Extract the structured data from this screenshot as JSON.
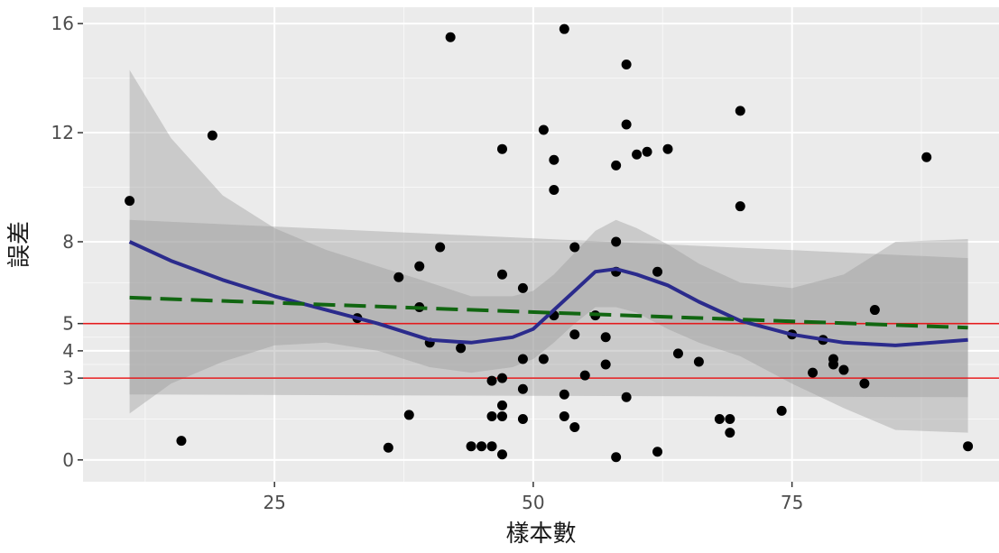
{
  "chart_data": {
    "type": "scatter",
    "title": "",
    "xlabel": "樣本數",
    "ylabel": "誤差",
    "xlim": [
      6.5,
      95
    ],
    "ylim": [
      -0.8,
      16.6
    ],
    "x_ticks": [
      25,
      50,
      75
    ],
    "x_tick_labels": [
      "25",
      "50",
      "75"
    ],
    "y_ticks": [
      0,
      3,
      4,
      5,
      8,
      12,
      16
    ],
    "y_tick_labels": [
      "0",
      "3",
      "4",
      "5",
      "8",
      "12",
      "16"
    ],
    "grid": true,
    "legend": "none",
    "reference_lines": [
      {
        "y": 5,
        "color": "#e31a1c"
      },
      {
        "y": 3,
        "color": "#e31a1c"
      }
    ],
    "points": [
      [
        11,
        9.5
      ],
      [
        16,
        0.7
      ],
      [
        19,
        11.9
      ],
      [
        33,
        5.2
      ],
      [
        36,
        0.45
      ],
      [
        37,
        6.7
      ],
      [
        38,
        1.65
      ],
      [
        39,
        7.1
      ],
      [
        39,
        5.6
      ],
      [
        40,
        4.3
      ],
      [
        41,
        7.8
      ],
      [
        42,
        15.5
      ],
      [
        43,
        4.1
      ],
      [
        44,
        0.5
      ],
      [
        45,
        0.5
      ],
      [
        46,
        0.5
      ],
      [
        46,
        2.9
      ],
      [
        46,
        1.6
      ],
      [
        47,
        11.4
      ],
      [
        47,
        6.8
      ],
      [
        47,
        3.0
      ],
      [
        47,
        2.0
      ],
      [
        47,
        1.6
      ],
      [
        47,
        0.2
      ],
      [
        49,
        6.3
      ],
      [
        49,
        3.7
      ],
      [
        49,
        2.6
      ],
      [
        49,
        1.5
      ],
      [
        51,
        12.1
      ],
      [
        51,
        3.7
      ],
      [
        52,
        11.0
      ],
      [
        52,
        9.9
      ],
      [
        52,
        5.3
      ],
      [
        53,
        15.8
      ],
      [
        53,
        2.4
      ],
      [
        53,
        1.6
      ],
      [
        54,
        7.8
      ],
      [
        54,
        4.6
      ],
      [
        54,
        1.2
      ],
      [
        55,
        3.1
      ],
      [
        56,
        5.3
      ],
      [
        57,
        4.5
      ],
      [
        57,
        3.5
      ],
      [
        58,
        10.8
      ],
      [
        58,
        8.0
      ],
      [
        58,
        6.9
      ],
      [
        58,
        0.1
      ],
      [
        59,
        14.5
      ],
      [
        59,
        12.3
      ],
      [
        59,
        2.3
      ],
      [
        60,
        11.2
      ],
      [
        61,
        11.3
      ],
      [
        62,
        6.9
      ],
      [
        62,
        0.3
      ],
      [
        63,
        11.4
      ],
      [
        64,
        3.9
      ],
      [
        66,
        3.6
      ],
      [
        68,
        1.5
      ],
      [
        69,
        1.5
      ],
      [
        69,
        1.0
      ],
      [
        70,
        12.8
      ],
      [
        70,
        9.3
      ],
      [
        74,
        1.8
      ],
      [
        75,
        4.6
      ],
      [
        77,
        3.2
      ],
      [
        78,
        4.4
      ],
      [
        79,
        3.7
      ],
      [
        79,
        3.5
      ],
      [
        80,
        3.3
      ],
      [
        82,
        2.8
      ],
      [
        83,
        5.5
      ],
      [
        88,
        11.1
      ],
      [
        92,
        0.5
      ]
    ],
    "series": [
      {
        "kind": "loess",
        "color": "#2b2b8c",
        "style": "solid",
        "x": [
          11,
          15,
          20,
          25,
          30,
          35,
          40,
          44,
          48,
          50,
          52,
          54,
          56,
          58,
          60,
          63,
          66,
          70,
          75,
          80,
          85,
          92
        ],
        "y": [
          8.0,
          7.3,
          6.6,
          6.0,
          5.5,
          5.0,
          4.4,
          4.3,
          4.5,
          4.8,
          5.5,
          6.2,
          6.9,
          7.0,
          6.8,
          6.4,
          5.8,
          5.1,
          4.6,
          4.3,
          4.2,
          4.4
        ],
        "ci_low": [
          1.7,
          2.8,
          3.6,
          4.2,
          4.3,
          4.0,
          3.4,
          3.2,
          3.4,
          3.7,
          4.3,
          5.0,
          5.6,
          5.6,
          5.4,
          4.8,
          4.3,
          3.8,
          2.8,
          1.9,
          1.1,
          1.0
        ],
        "ci_high": [
          14.3,
          11.8,
          9.7,
          8.5,
          7.7,
          7.1,
          6.5,
          6.0,
          6.0,
          6.2,
          6.8,
          7.6,
          8.4,
          8.8,
          8.5,
          7.9,
          7.2,
          6.5,
          6.3,
          6.8,
          8.0,
          8.1
        ]
      },
      {
        "kind": "linear",
        "color": "#116611",
        "style": "dashed",
        "x": [
          11,
          92
        ],
        "y": [
          5.95,
          4.85
        ],
        "ci_low": [
          2.4,
          2.3
        ],
        "ci_high": [
          8.8,
          7.4
        ]
      }
    ]
  }
}
